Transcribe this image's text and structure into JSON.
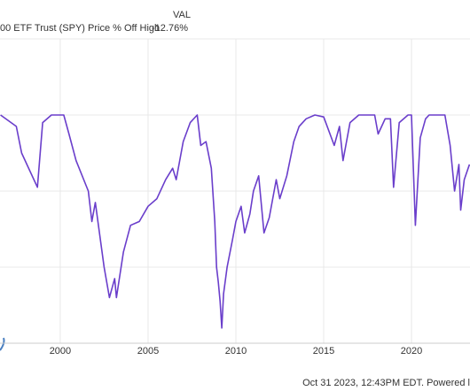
{
  "chart_data": {
    "type": "line",
    "legend_column": "VAL",
    "series": [
      {
        "name": "00 ETF Trust (SPY) Price % Off High",
        "latest_label": "-12.76%",
        "color": "#6a3ecb",
        "values": [
          0,
          -3,
          -10,
          -19,
          -2,
          0,
          0,
          -5,
          -12,
          -20,
          -28,
          -23,
          -40,
          -48,
          -43,
          -48,
          -36,
          -29,
          -28,
          -24,
          -22,
          -17,
          -14,
          -17,
          -7,
          -2,
          0,
          -8,
          -7,
          -14,
          -28,
          -40,
          -44,
          -49,
          -56,
          -47,
          -40,
          -33,
          -28,
          -24,
          -31,
          -26,
          -20,
          -16,
          -31,
          -27,
          -17,
          -22,
          -16,
          -7,
          -3,
          -1,
          0,
          -0.5,
          -8,
          -3,
          -12,
          -2,
          0,
          0,
          -5,
          -1,
          -1,
          -19,
          -2,
          0,
          0,
          -29,
          -6,
          -1,
          0,
          0,
          -8,
          -20,
          -13,
          -25,
          -17,
          -13
        ]
      }
    ],
    "x": [
      1996.6,
      1997.5,
      1997.8,
      1998.7,
      1999.0,
      1999.5,
      2000.2,
      2000.5,
      2000.9,
      2001.6,
      2001.8,
      2002.0,
      2002.5,
      2002.8,
      2003.1,
      2003.2,
      2003.6,
      2004.0,
      2004.5,
      2005.0,
      2005.5,
      2006.0,
      2006.4,
      2006.6,
      2007.0,
      2007.4,
      2007.8,
      2008.0,
      2008.3,
      2008.6,
      2008.8,
      2008.9,
      2009.0,
      2009.1,
      2009.2,
      2009.3,
      2009.5,
      2009.8,
      2010.0,
      2010.3,
      2010.5,
      2010.8,
      2011.0,
      2011.3,
      2011.6,
      2011.9,
      2012.3,
      2012.5,
      2012.9,
      2013.3,
      2013.6,
      2014.0,
      2014.5,
      2015.0,
      2015.6,
      2015.9,
      2016.1,
      2016.5,
      2017.0,
      2017.9,
      2018.1,
      2018.5,
      2018.8,
      2018.98,
      2019.3,
      2019.8,
      2020.0,
      2020.22,
      2020.5,
      2020.8,
      2021.0,
      2021.9,
      2022.2,
      2022.45,
      2022.7,
      2022.8,
      2023.0,
      2023.3
    ],
    "xlim": [
      1996.57,
      2023.33
    ],
    "xticks": [
      2000,
      2005,
      2010,
      2015,
      2020
    ],
    "ylim": [
      -60,
      20
    ],
    "yticks": [
      -60,
      -40,
      -20,
      0,
      20
    ],
    "grid": true,
    "footer": "Oct 31 2023, 12:43PM EDT.  Powered l"
  }
}
